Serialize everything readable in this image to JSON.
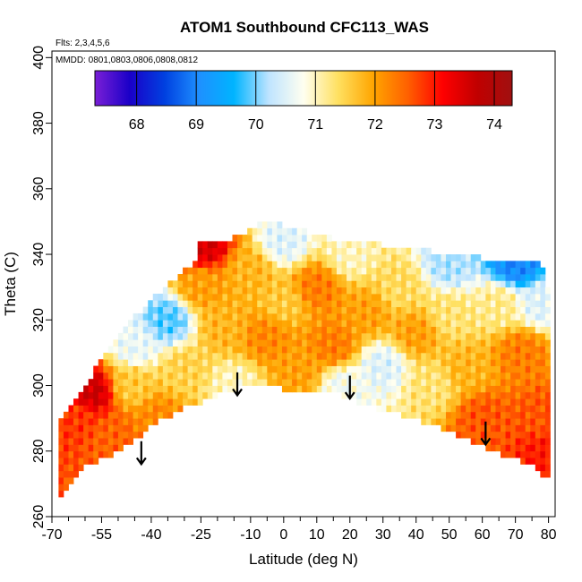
{
  "chart_data": {
    "type": "heatmap",
    "title": "ATOM1 Southbound CFC113_WAS",
    "annotations": [
      "Flts: 2,3,4,5,6",
      "MMDD: 0801,0803,0806,0808,0812"
    ],
    "xlabel": "Latitude (deg N)",
    "ylabel": "Theta (C)",
    "xlim": [
      -70,
      82
    ],
    "ylim": [
      260,
      402
    ],
    "x_ticks_labeled": [
      -70,
      -55,
      -40,
      -25,
      -10,
      0,
      10,
      20,
      30,
      40,
      50,
      60,
      70,
      80
    ],
    "x_ticks_minor": [
      -65,
      -60,
      -50,
      -45,
      -35,
      -30,
      -20,
      -15,
      -5,
      5,
      15,
      25,
      35,
      45,
      55,
      65,
      75
    ],
    "y_ticks": [
      260,
      280,
      300,
      320,
      340,
      360,
      380,
      400
    ],
    "colorbar": {
      "min": 67.3,
      "max": 74.3,
      "tick_labels": [
        "68",
        "69",
        "70",
        "71",
        "72",
        "73",
        "74"
      ],
      "tick_values": [
        68,
        69,
        70,
        71,
        72,
        73,
        74
      ],
      "colors": [
        "#7a1fd6",
        "#1a00c8",
        "#0040e0",
        "#1e90ff",
        "#00b4ff",
        "#bfe4ff",
        "#fffff0",
        "#ffe060",
        "#ffa500",
        "#ff6000",
        "#ff0000",
        "#c00000",
        "#a01010"
      ]
    },
    "boundary": {
      "top": [
        [
          -68,
          289
        ],
        [
          -60,
          300
        ],
        [
          -50,
          316
        ],
        [
          -40,
          326
        ],
        [
          -35,
          331
        ],
        [
          -27,
          338
        ],
        [
          -25,
          344
        ],
        [
          -15,
          345
        ],
        [
          -8,
          349
        ],
        [
          0,
          349
        ],
        [
          10,
          346
        ],
        [
          20,
          344
        ],
        [
          30,
          343
        ],
        [
          40,
          342
        ],
        [
          50,
          340
        ],
        [
          60,
          339
        ],
        [
          70,
          338
        ],
        [
          77,
          338
        ],
        [
          79,
          334
        ],
        [
          80,
          328
        ]
      ],
      "bottom": [
        [
          -68,
          266
        ],
        [
          -60,
          275
        ],
        [
          -50,
          280
        ],
        [
          -45,
          283
        ],
        [
          -40,
          288
        ],
        [
          -30,
          293
        ],
        [
          -20,
          297
        ],
        [
          -12,
          300
        ],
        [
          -5,
          300
        ],
        [
          5,
          298
        ],
        [
          15,
          298
        ],
        [
          25,
          294
        ],
        [
          35,
          291
        ],
        [
          45,
          288
        ],
        [
          55,
          284
        ],
        [
          65,
          279
        ],
        [
          75,
          276
        ],
        [
          78,
          273
        ],
        [
          80,
          272
        ]
      ]
    },
    "field_anchors": [
      {
        "x": -62,
        "y": 290,
        "value": 72.8
      },
      {
        "x": -58,
        "y": 298,
        "value": 73.6
      },
      {
        "x": -52,
        "y": 285,
        "value": 72.5
      },
      {
        "x": -46,
        "y": 300,
        "value": 71.6
      },
      {
        "x": -45,
        "y": 312,
        "value": 70.6
      },
      {
        "x": -38,
        "y": 290,
        "value": 72.2
      },
      {
        "x": -35,
        "y": 320,
        "value": 69.9
      },
      {
        "x": -30,
        "y": 305,
        "value": 71.5
      },
      {
        "x": -25,
        "y": 330,
        "value": 72.0
      },
      {
        "x": -24,
        "y": 343,
        "value": 73.5
      },
      {
        "x": -18,
        "y": 318,
        "value": 71.8
      },
      {
        "x": -15,
        "y": 300,
        "value": 71.0
      },
      {
        "x": -10,
        "y": 335,
        "value": 71.8
      },
      {
        "x": -5,
        "y": 315,
        "value": 72.2
      },
      {
        "x": 0,
        "y": 344,
        "value": 70.5
      },
      {
        "x": 0,
        "y": 325,
        "value": 71.6
      },
      {
        "x": 5,
        "y": 305,
        "value": 72.0
      },
      {
        "x": 10,
        "y": 330,
        "value": 72.3
      },
      {
        "x": 15,
        "y": 312,
        "value": 72.3
      },
      {
        "x": 18,
        "y": 300,
        "value": 70.7
      },
      {
        "x": 20,
        "y": 340,
        "value": 71.0
      },
      {
        "x": 25,
        "y": 322,
        "value": 72.0
      },
      {
        "x": 30,
        "y": 306,
        "value": 70.5
      },
      {
        "x": 35,
        "y": 330,
        "value": 71.4
      },
      {
        "x": 40,
        "y": 316,
        "value": 72.0
      },
      {
        "x": 45,
        "y": 300,
        "value": 71.3
      },
      {
        "x": 50,
        "y": 337,
        "value": 70.2
      },
      {
        "x": 50,
        "y": 322,
        "value": 71.3
      },
      {
        "x": 55,
        "y": 305,
        "value": 71.8
      },
      {
        "x": 60,
        "y": 290,
        "value": 72.6
      },
      {
        "x": 65,
        "y": 325,
        "value": 71.2
      },
      {
        "x": 70,
        "y": 337,
        "value": 69.0
      },
      {
        "x": 72,
        "y": 310,
        "value": 72.3
      },
      {
        "x": 78,
        "y": 325,
        "value": 70.5
      },
      {
        "x": 78,
        "y": 290,
        "value": 72.6
      },
      {
        "x": 79,
        "y": 280,
        "value": 73.0
      }
    ],
    "arrows": [
      {
        "x": -43,
        "y_top": 283,
        "y_bottom": 276
      },
      {
        "x": -14,
        "y_top": 304,
        "y_bottom": 297
      },
      {
        "x": 20,
        "y_top": 303,
        "y_bottom": 296
      },
      {
        "x": 61,
        "y_top": 289,
        "y_bottom": 282
      }
    ],
    "grid": false,
    "legend": "colorbar-top"
  }
}
